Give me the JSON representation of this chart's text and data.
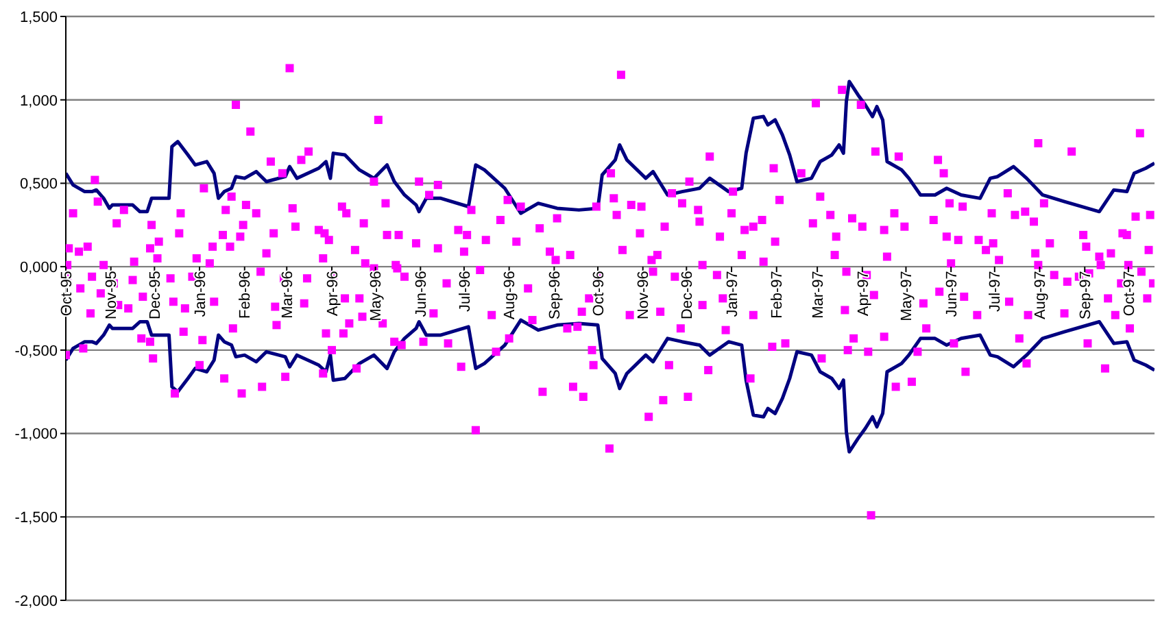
{
  "chart_data": {
    "type": "scatter",
    "xlim": [
      "1995-10-01",
      "1997-10-19"
    ],
    "xticks": [
      {
        "value": "1995-10-01",
        "label": "Oct-95"
      },
      {
        "value": "1995-11-01",
        "label": "Nov-95"
      },
      {
        "value": "1995-12-01",
        "label": "Dec-95"
      },
      {
        "value": "1996-01-01",
        "label": "Jan-96"
      },
      {
        "value": "1996-02-01",
        "label": "Feb-96"
      },
      {
        "value": "1996-03-01",
        "label": "Mar-96"
      },
      {
        "value": "1996-04-01",
        "label": "Apr-96"
      },
      {
        "value": "1996-05-01",
        "label": "May-96"
      },
      {
        "value": "1996-06-01",
        "label": "Jun-96"
      },
      {
        "value": "1996-07-01",
        "label": "Jul-96"
      },
      {
        "value": "1996-08-01",
        "label": "Aug-96"
      },
      {
        "value": "1996-09-01",
        "label": "Sep-96"
      },
      {
        "value": "1996-10-01",
        "label": "Oct-96"
      },
      {
        "value": "1996-11-01",
        "label": "Nov-96"
      },
      {
        "value": "1996-12-01",
        "label": "Dec-96"
      },
      {
        "value": "1997-01-01",
        "label": "Jan-97"
      },
      {
        "value": "1997-02-01",
        "label": "Feb-97"
      },
      {
        "value": "1997-03-01",
        "label": "Mar-97"
      },
      {
        "value": "1997-04-01",
        "label": "Apr-97"
      },
      {
        "value": "1997-05-01",
        "label": "May-97"
      },
      {
        "value": "1997-06-01",
        "label": "Jun-97"
      },
      {
        "value": "1997-07-01",
        "label": "Jul-97"
      },
      {
        "value": "1997-08-01",
        "label": "Aug-97"
      },
      {
        "value": "1997-09-01",
        "label": "Sep-97"
      },
      {
        "value": "1997-10-01",
        "label": "Oct-97"
      }
    ],
    "ylim": [
      -2,
      1.5
    ],
    "yticks": [
      {
        "value": 1.5,
        "label": "1,500"
      },
      {
        "value": 1,
        "label": "1,000"
      },
      {
        "value": 0.5,
        "label": "0,500"
      },
      {
        "value": 0,
        "label": "0,000"
      },
      {
        "value": -0.5,
        "label": "-0,500"
      },
      {
        "value": -1,
        "label": "-1,000"
      },
      {
        "value": -1.5,
        "label": "-1,500"
      },
      {
        "value": -2,
        "label": "-2,000"
      }
    ],
    "grid": "y",
    "series": [
      {
        "type": "line",
        "color": "#000080",
        "marker": "none",
        "x": [
          "1995-10-01",
          "1995-10-06",
          "1995-10-14",
          "1995-10-19",
          "1995-10-22",
          "1995-10-27",
          "1995-10-31",
          "1995-11-02",
          "1995-11-11",
          "1995-11-16",
          "1995-11-21",
          "1995-11-26",
          "1995-11-29",
          "1995-12-11",
          "1995-12-13",
          "1995-12-17",
          "1995-12-24",
          "1995-12-29",
          "1996-01-06",
          "1996-01-11",
          "1996-01-14",
          "1996-01-18",
          "1996-01-23",
          "1996-01-26",
          "1996-02-01",
          "1996-02-09",
          "1996-02-16",
          "1996-02-29",
          "1996-03-03",
          "1996-03-08",
          "1996-03-23",
          "1996-03-28",
          "1996-03-31",
          "1996-04-02",
          "1996-04-10",
          "1996-04-20",
          "1996-04-30",
          "1996-05-09",
          "1996-05-14",
          "1996-05-21",
          "1996-05-29",
          "1996-05-31",
          "1996-06-05",
          "1996-06-15",
          "1996-07-04",
          "1996-07-09",
          "1996-07-15",
          "1996-07-29",
          "1996-08-09",
          "1996-08-21",
          "1996-09-03",
          "1996-09-18",
          "1996-10-01",
          "1996-10-04",
          "1996-10-13",
          "1996-10-16",
          "1996-10-21",
          "1996-11-03",
          "1996-11-08",
          "1996-11-18",
          "1996-11-28",
          "1996-12-10",
          "1996-12-17",
          "1996-12-30",
          "1997-01-08",
          "1997-01-11",
          "1997-01-16",
          "1997-01-23",
          "1997-01-26",
          "1997-01-31",
          "1997-02-05",
          "1997-02-10",
          "1997-02-15",
          "1997-02-25",
          "1997-03-03",
          "1997-03-11",
          "1997-03-16",
          "1997-03-19",
          "1997-03-21",
          "1997-03-23",
          "1997-03-29",
          "1997-04-03",
          "1997-04-08",
          "1997-04-11",
          "1997-04-15",
          "1997-04-18",
          "1997-04-28",
          "1997-05-03",
          "1997-05-11",
          "1997-05-21",
          "1997-05-29",
          "1997-06-08",
          "1997-06-21",
          "1997-06-28",
          "1997-07-03",
          "1997-07-14",
          "1997-07-23",
          "1997-08-03",
          "1997-08-18",
          "1997-09-11",
          "1997-09-21",
          "1997-09-30",
          "1997-10-05",
          "1997-10-13",
          "1997-10-19"
        ],
        "values": [
          0.56,
          0.49,
          0.45,
          0.45,
          0.46,
          0.41,
          0.35,
          0.37,
          0.37,
          0.37,
          0.33,
          0.33,
          0.41,
          0.41,
          0.72,
          0.75,
          0.67,
          0.61,
          0.63,
          0.56,
          0.41,
          0.45,
          0.47,
          0.54,
          0.53,
          0.57,
          0.51,
          0.54,
          0.6,
          0.53,
          0.59,
          0.63,
          0.53,
          0.68,
          0.67,
          0.58,
          0.53,
          0.61,
          0.51,
          0.43,
          0.37,
          0.33,
          0.41,
          0.41,
          0.36,
          0.61,
          0.58,
          0.47,
          0.32,
          0.38,
          0.35,
          0.34,
          0.35,
          0.55,
          0.64,
          0.73,
          0.64,
          0.53,
          0.57,
          0.43,
          0.45,
          0.47,
          0.53,
          0.45,
          0.47,
          0.68,
          0.89,
          0.9,
          0.85,
          0.88,
          0.79,
          0.67,
          0.51,
          0.53,
          0.63,
          0.67,
          0.73,
          0.68,
          0.99,
          1.11,
          1.03,
          0.97,
          0.9,
          0.96,
          0.88,
          0.63,
          0.58,
          0.53,
          0.43,
          0.43,
          0.47,
          0.43,
          0.41,
          0.53,
          0.54,
          0.6,
          0.53,
          0.43,
          0.39,
          0.33,
          0.46,
          0.45,
          0.56,
          0.59,
          0.62
        ]
      },
      {
        "type": "line",
        "color": "#000080",
        "marker": "none",
        "x": [
          "1995-10-01",
          "1995-10-06",
          "1995-10-14",
          "1995-10-19",
          "1995-10-22",
          "1995-10-27",
          "1995-10-31",
          "1995-11-02",
          "1995-11-11",
          "1995-11-16",
          "1995-11-21",
          "1995-11-26",
          "1995-11-29",
          "1995-12-11",
          "1995-12-13",
          "1995-12-17",
          "1995-12-24",
          "1995-12-29",
          "1996-01-06",
          "1996-01-11",
          "1996-01-14",
          "1996-01-18",
          "1996-01-23",
          "1996-01-26",
          "1996-02-01",
          "1996-02-09",
          "1996-02-16",
          "1996-02-29",
          "1996-03-03",
          "1996-03-08",
          "1996-03-23",
          "1996-03-28",
          "1996-03-31",
          "1996-04-02",
          "1996-04-10",
          "1996-04-20",
          "1996-04-30",
          "1996-05-09",
          "1996-05-14",
          "1996-05-21",
          "1996-05-29",
          "1996-05-31",
          "1996-06-05",
          "1996-06-15",
          "1996-07-04",
          "1996-07-09",
          "1996-07-15",
          "1996-07-29",
          "1996-08-09",
          "1996-08-21",
          "1996-09-03",
          "1996-09-18",
          "1996-10-01",
          "1996-10-04",
          "1996-10-13",
          "1996-10-16",
          "1996-10-21",
          "1996-11-03",
          "1996-11-08",
          "1996-11-18",
          "1996-11-28",
          "1996-12-10",
          "1996-12-17",
          "1996-12-30",
          "1997-01-08",
          "1997-01-11",
          "1997-01-16",
          "1997-01-23",
          "1997-01-26",
          "1997-01-31",
          "1997-02-05",
          "1997-02-10",
          "1997-02-15",
          "1997-02-25",
          "1997-03-03",
          "1997-03-11",
          "1997-03-16",
          "1997-03-19",
          "1997-03-21",
          "1997-03-23",
          "1997-03-29",
          "1997-04-03",
          "1997-04-08",
          "1997-04-11",
          "1997-04-15",
          "1997-04-18",
          "1997-04-28",
          "1997-05-03",
          "1997-05-11",
          "1997-05-21",
          "1997-05-29",
          "1997-06-08",
          "1997-06-21",
          "1997-06-28",
          "1997-07-03",
          "1997-07-14",
          "1997-07-23",
          "1997-08-03",
          "1997-08-18",
          "1997-09-11",
          "1997-09-21",
          "1997-09-30",
          "1997-10-05",
          "1997-10-13",
          "1997-10-19"
        ],
        "values": [
          -0.56,
          -0.49,
          -0.45,
          -0.45,
          -0.46,
          -0.41,
          -0.35,
          -0.37,
          -0.37,
          -0.37,
          -0.33,
          -0.33,
          -0.41,
          -0.41,
          -0.72,
          -0.75,
          -0.67,
          -0.61,
          -0.63,
          -0.56,
          -0.41,
          -0.45,
          -0.47,
          -0.54,
          -0.53,
          -0.57,
          -0.51,
          -0.54,
          -0.6,
          -0.53,
          -0.59,
          -0.63,
          -0.53,
          -0.68,
          -0.67,
          -0.58,
          -0.53,
          -0.61,
          -0.51,
          -0.43,
          -0.37,
          -0.33,
          -0.41,
          -0.41,
          -0.36,
          -0.61,
          -0.58,
          -0.47,
          -0.32,
          -0.38,
          -0.35,
          -0.34,
          -0.35,
          -0.55,
          -0.64,
          -0.73,
          -0.64,
          -0.53,
          -0.57,
          -0.43,
          -0.45,
          -0.47,
          -0.53,
          -0.45,
          -0.47,
          -0.68,
          -0.89,
          -0.9,
          -0.85,
          -0.88,
          -0.79,
          -0.67,
          -0.51,
          -0.53,
          -0.63,
          -0.67,
          -0.73,
          -0.68,
          -0.99,
          -1.11,
          -1.03,
          -0.97,
          -0.9,
          -0.96,
          -0.88,
          -0.63,
          -0.58,
          -0.53,
          -0.43,
          -0.43,
          -0.47,
          -0.43,
          -0.41,
          -0.53,
          -0.54,
          -0.6,
          -0.53,
          -0.43,
          -0.39,
          -0.33,
          -0.46,
          -0.45,
          -0.56,
          -0.59,
          -0.62
        ]
      },
      {
        "color": "#ff00ff",
        "marker": "square",
        "x": [
          "1995-10-02",
          "1995-10-06",
          "1995-10-03",
          "1995-10-10",
          "1995-10-16",
          "1995-10-21",
          "1995-10-23",
          "1995-10-02",
          "1995-10-11",
          "1995-10-19",
          "1995-10-18",
          "1995-10-25",
          "1995-10-13",
          "1995-10-01",
          "1995-10-27",
          "1995-11-05",
          "1995-11-10",
          "1995-11-17",
          "1995-11-03",
          "1995-11-06",
          "1995-11-13",
          "1995-11-16",
          "1995-11-23",
          "1995-11-22",
          "1995-11-28",
          "1995-11-30",
          "1995-11-29",
          "1995-11-28",
          "1995-12-03",
          "1995-12-04",
          "1995-12-12",
          "1995-12-14",
          "1995-12-15",
          "1995-12-19",
          "1995-12-18",
          "1995-12-21",
          "1995-12-22",
          "1995-12-27",
          "1995-12-30",
          "1996-01-04",
          "1996-01-03",
          "1996-01-01",
          "1996-01-08",
          "1996-01-10",
          "1996-01-11",
          "1996-01-17",
          "1996-01-19",
          "1996-01-23",
          "1996-01-22",
          "1996-01-26",
          "1996-01-18",
          "1996-01-24",
          "1996-01-30",
          "1996-01-29",
          "1996-02-02",
          "1996-01-31",
          "1996-02-05",
          "1996-02-09",
          "1996-02-12",
          "1996-02-13",
          "1996-02-16",
          "1996-02-19",
          "1996-02-21",
          "1996-02-22",
          "1996-02-23",
          "1996-02-27",
          "1996-02-29",
          "1996-03-03",
          "1996-03-05",
          "1996-02-28",
          "1996-03-07",
          "1996-03-11",
          "1996-03-16",
          "1996-03-13",
          "1996-03-15",
          "1996-03-23",
          "1996-03-26",
          "1996-03-27",
          "1996-03-30",
          "1996-03-28",
          "1996-03-26",
          "1996-04-01",
          "1996-04-02",
          "1996-04-08",
          "1996-04-11",
          "1996-04-10",
          "1996-04-09",
          "1996-04-13",
          "1996-04-18",
          "1996-04-17",
          "1996-04-20",
          "1996-04-23",
          "1996-04-24",
          "1996-04-22",
          "1996-04-30",
          "1996-05-03",
          "1996-04-30",
          "1996-05-08",
          "1996-05-09",
          "1996-05-06",
          "1996-05-14",
          "1996-05-15",
          "1996-05-17",
          "1996-05-19",
          "1996-05-16",
          "1996-05-21",
          "1996-05-29",
          "1996-06-03",
          "1996-05-31",
          "1996-06-07",
          "1996-06-13",
          "1996-06-10",
          "1996-06-13",
          "1996-06-19",
          "1996-06-20",
          "1996-06-27",
          "1996-06-29",
          "1996-07-01",
          "1996-07-03",
          "1996-07-06",
          "1996-07-09",
          "1996-07-12",
          "1996-07-16",
          "1996-07-20",
          "1996-07-23",
          "1996-07-26",
          "1996-07-31",
          "1996-08-01",
          "1996-08-06",
          "1996-08-09",
          "1996-08-14",
          "1996-08-17",
          "1996-08-22",
          "1996-08-24",
          "1996-08-29",
          "1996-09-03",
          "1996-09-02",
          "1996-09-10",
          "1996-09-12",
          "1996-09-14",
          "1996-09-20",
          "1996-09-21",
          "1996-09-17",
          "1996-09-25",
          "1996-09-27",
          "1996-09-28",
          "1996-10-01",
          "1996-09-30",
          "1996-10-10",
          "1996-10-12",
          "1996-10-14",
          "1996-10-09",
          "1996-10-17",
          "1996-10-18",
          "1996-10-23",
          "1996-10-24",
          "1996-10-31",
          "1996-10-30",
          "1996-11-05",
          "1996-11-07",
          "1996-11-11",
          "1996-11-08",
          "1996-11-15",
          "1996-11-13",
          "1996-11-16",
          "1996-11-19",
          "1996-11-21",
          "1996-11-23",
          "1996-11-28",
          "1996-11-27",
          "1996-12-02",
          "1996-12-03",
          "1996-12-09",
          "1996-12-10",
          "1996-12-12",
          "1996-12-12",
          "1996-12-16",
          "1996-12-17",
          "1996-12-22",
          "1996-12-24",
          "1996-12-26",
          "1996-12-28",
          "1997-01-02",
          "1997-01-01",
          "1997-01-08",
          "1997-01-10",
          "1997-01-16",
          "1997-01-22",
          "1997-01-16",
          "1997-01-14",
          "1997-01-23",
          "1997-01-30",
          "1997-01-31",
          "1997-02-03",
          "1997-01-29",
          "1997-02-07",
          "1997-02-18",
          "1997-02-28",
          "1997-03-04",
          "1997-03-03",
          "1997-02-26",
          "1997-03-10",
          "1997-03-14",
          "1997-03-13",
          "1997-03-18",
          "1997-03-21",
          "1997-03-20",
          "1997-03-22",
          "1997-03-26",
          "1997-03-25",
          "1997-03-31",
          "1997-04-01",
          "1997-04-04",
          "1997-04-07",
          "1997-04-09",
          "1997-04-10",
          "1997-04-05",
          "1997-04-16",
          "1997-04-18",
          "1997-04-16",
          "1997-04-24",
          "1997-04-26",
          "1997-04-23",
          "1997-04-30",
          "1997-05-05",
          "1997-05-09",
          "1997-05-13",
          "1997-05-15",
          "1997-05-20",
          "1997-05-23",
          "1997-05-27",
          "1997-05-24",
          "1997-05-29",
          "1997-05-31",
          "1997-06-01",
          "1997-06-03",
          "1997-06-06",
          "1997-06-09",
          "1997-06-10",
          "1997-06-11",
          "1997-06-19",
          "1997-06-20",
          "1997-06-25",
          "1997-06-29",
          "1997-06-30",
          "1997-07-04",
          "1997-07-10",
          "1997-07-11",
          "1997-07-15",
          "1997-07-18",
          "1997-07-23",
          "1997-07-22",
          "1997-07-24",
          "1997-07-28",
          "1997-07-29",
          "1997-07-31",
          "1997-07-31",
          "1997-08-04",
          "1997-08-08",
          "1997-08-11",
          "1997-08-18",
          "1997-08-20",
          "1997-08-23",
          "1997-08-28",
          "1997-08-31",
          "1997-09-02",
          "1997-09-03",
          "1997-09-04",
          "1997-09-11",
          "1997-09-12",
          "1997-09-15",
          "1997-09-17",
          "1997-09-19",
          "1997-09-22",
          "1997-09-27",
          "1997-09-26",
          "1997-09-30",
          "1997-10-01",
          "1997-10-02",
          "1997-10-06",
          "1997-10-09",
          "1997-10-10",
          "1997-10-14",
          "1997-10-16",
          "1997-10-15",
          "1997-10-18"
        ],
        "values": [
          0.01,
          0.32,
          0.11,
          0.09,
          0.12,
          0.52,
          0.39,
          -0.07,
          -0.13,
          -0.06,
          -0.28,
          -0.16,
          -0.49,
          -0.53,
          0.01,
          0.26,
          0.34,
          0.03,
          -0.1,
          -0.23,
          -0.25,
          -0.08,
          -0.18,
          -0.43,
          -0.45,
          -0.55,
          0.25,
          0.11,
          0.05,
          0.15,
          -0.07,
          -0.21,
          -0.76,
          0.32,
          0.2,
          -0.39,
          -0.25,
          -0.06,
          0.05,
          0.47,
          -0.44,
          -0.59,
          0.02,
          0.12,
          -0.21,
          0.19,
          0.34,
          0.42,
          0.12,
          0.97,
          -0.67,
          -0.37,
          -0.76,
          0.18,
          0.37,
          0.25,
          0.81,
          0.32,
          -0.03,
          -0.72,
          0.08,
          0.63,
          0.2,
          -0.24,
          -0.35,
          0.56,
          -0.66,
          1.19,
          0.35,
          -0.07,
          0.24,
          0.64,
          0.69,
          -0.22,
          -0.07,
          0.22,
          0.05,
          0.2,
          0.16,
          -0.4,
          -0.64,
          -0.5,
          -0.05,
          0.36,
          0.32,
          -0.19,
          -0.4,
          -0.34,
          -0.61,
          0.1,
          -0.19,
          0.26,
          0.02,
          -0.3,
          0.51,
          0.88,
          -0.01,
          0.38,
          0.19,
          -0.34,
          -0.45,
          0.01,
          0.19,
          -0.47,
          -0.01,
          -0.06,
          0.14,
          -0.45,
          0.51,
          0.43,
          0.49,
          -0.28,
          0.11,
          -0.1,
          -0.46,
          0.22,
          -0.6,
          0.09,
          0.19,
          0.34,
          -0.98,
          -0.02,
          0.16,
          -0.29,
          -0.51,
          0.28,
          0.4,
          -0.43,
          0.15,
          0.36,
          -0.13,
          -0.32,
          0.23,
          -0.75,
          0.09,
          0.29,
          0.04,
          -0.37,
          0.07,
          -0.72,
          -0.27,
          -0.78,
          -0.36,
          -0.19,
          -0.5,
          -0.59,
          -0.06,
          0.36,
          0.56,
          0.41,
          0.31,
          -1.09,
          1.15,
          0.1,
          -0.29,
          0.37,
          0.36,
          0.2,
          -0.9,
          0.04,
          0.07,
          -0.03,
          -0.8,
          -0.27,
          0.24,
          -0.59,
          0.44,
          -0.06,
          0.38,
          -0.37,
          -0.78,
          0.51,
          0.34,
          0.27,
          0.01,
          -0.23,
          -0.62,
          0.66,
          -0.05,
          0.18,
          -0.19,
          -0.38,
          0.45,
          0.32,
          0.07,
          0.22,
          0.24,
          0.28,
          -0.29,
          -0.67,
          0.03,
          0.59,
          0.15,
          0.4,
          -0.48,
          -0.46,
          0.56,
          0.98,
          -0.55,
          0.42,
          0.26,
          0.31,
          0.18,
          0.07,
          1.06,
          -0.03,
          -0.26,
          -0.5,
          -0.43,
          0.29,
          0.97,
          0.24,
          -0.05,
          -1.49,
          -0.17,
          0.69,
          -0.51,
          0.22,
          0.06,
          -0.42,
          -0.72,
          0.66,
          0.32,
          0.24,
          -0.69,
          -0.51,
          -0.22,
          -0.37,
          0.28,
          0.64,
          0.56,
          -0.15,
          0.18,
          0.38,
          0.02,
          -0.46,
          0.16,
          0.36,
          -0.18,
          -0.63,
          -0.29,
          0.16,
          0.1,
          0.32,
          0.14,
          0.04,
          0.44,
          -0.21,
          0.31,
          -0.43,
          -0.58,
          0.33,
          -0.29,
          0.27,
          0.08,
          0.74,
          0.01,
          0.38,
          0.14,
          -0.05,
          -0.28,
          -0.09,
          0.69,
          -0.06,
          0.19,
          0.12,
          -0.46,
          -0.04,
          0.06,
          0.01,
          -0.61,
          -0.19,
          0.08,
          -0.29,
          0.2,
          -0.1,
          0.19,
          0.01,
          -0.37,
          0.3,
          0.8,
          -0.03,
          -0.19,
          0.31,
          0.1,
          -0.1
        ]
      }
    ]
  }
}
